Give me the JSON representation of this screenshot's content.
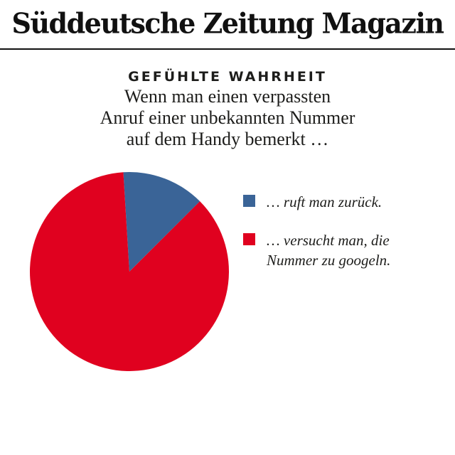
{
  "masthead": {
    "title": "Süddeutsche Zeitung Magazin"
  },
  "chart_data": {
    "type": "pie",
    "title": "GEFÜHLTE WAHRHEIT",
    "subtitle_lines": [
      "Wenn man einen verpassten",
      "Anruf einer unbekannten Nummer",
      "auf dem Handy bemerkt …"
    ],
    "labels": [
      "… ruft man zurück.",
      "… versucht man, die Nummer zu googeln."
    ],
    "values": [
      13.5,
      86.5
    ],
    "colors": [
      "#3a6497",
      "#e0011f"
    ],
    "start_angle_deg": -3.5,
    "grid": false,
    "legend_position": "right",
    "legend": [
      {
        "color": "#3a6497",
        "lines": [
          "… ruft man zurück.",
          ""
        ]
      },
      {
        "color": "#e0011f",
        "lines": [
          "… versucht man, die",
          "Nummer zu googeln."
        ]
      }
    ]
  }
}
